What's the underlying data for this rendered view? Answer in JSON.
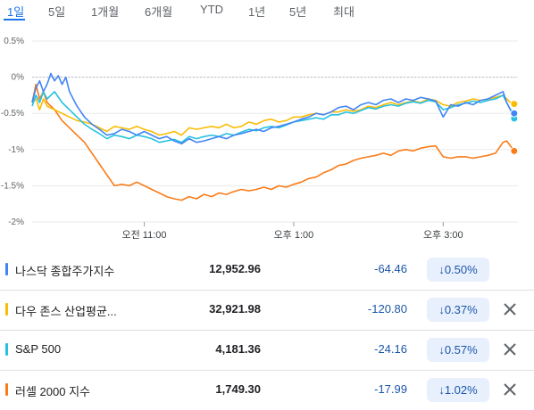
{
  "tabs": [
    {
      "label": "1일",
      "active": true
    },
    {
      "label": "5일"
    },
    {
      "label": "1개월"
    },
    {
      "label": "6개월"
    },
    {
      "label": "YTD"
    },
    {
      "label": "1년"
    },
    {
      "label": "5년"
    },
    {
      "label": "최대"
    }
  ],
  "chart_data": {
    "type": "line",
    "ylim": [
      -2,
      0.5
    ],
    "yticks": [
      "0.5%",
      "0%",
      "-0.5%",
      "-1%",
      "-1.5%",
      "-2%"
    ],
    "yvalues": [
      0.5,
      0,
      -0.5,
      -1,
      -1.5,
      -2
    ],
    "xlim": [
      9.5,
      16.0
    ],
    "xticks": [
      {
        "label": "오전 11:00",
        "t": 11.0
      },
      {
        "label": "오후 1:00",
        "t": 13.0
      },
      {
        "label": "오후 3:00",
        "t": 15.0
      }
    ],
    "grid": true,
    "series": [
      {
        "name": "나스닥 종합주가지수",
        "color": "#4285f4",
        "x": [
          9.5,
          9.55,
          9.6,
          9.65,
          9.7,
          9.75,
          9.8,
          9.85,
          9.9,
          9.95,
          10.0,
          10.1,
          10.2,
          10.3,
          10.4,
          10.5,
          10.6,
          10.7,
          10.8,
          10.9,
          11.0,
          11.1,
          11.2,
          11.3,
          11.4,
          11.5,
          11.6,
          11.7,
          11.8,
          11.9,
          12.0,
          12.1,
          12.2,
          12.3,
          12.4,
          12.5,
          12.6,
          12.7,
          12.8,
          12.9,
          13.0,
          13.1,
          13.2,
          13.3,
          13.4,
          13.5,
          13.6,
          13.7,
          13.8,
          13.9,
          14.0,
          14.1,
          14.2,
          14.3,
          14.4,
          14.5,
          14.6,
          14.7,
          14.8,
          14.9,
          15.0,
          15.1,
          15.2,
          15.3,
          15.4,
          15.5,
          15.6,
          15.7,
          15.8,
          15.85,
          15.9,
          15.95
        ],
        "y": [
          -0.35,
          -0.15,
          -0.05,
          -0.2,
          -0.1,
          0.05,
          -0.05,
          0.02,
          -0.1,
          0.0,
          -0.2,
          -0.4,
          -0.55,
          -0.65,
          -0.72,
          -0.8,
          -0.78,
          -0.72,
          -0.75,
          -0.8,
          -0.75,
          -0.8,
          -0.85,
          -0.82,
          -0.88,
          -0.92,
          -0.85,
          -0.9,
          -0.88,
          -0.85,
          -0.82,
          -0.85,
          -0.8,
          -0.78,
          -0.75,
          -0.72,
          -0.75,
          -0.7,
          -0.68,
          -0.65,
          -0.62,
          -0.58,
          -0.55,
          -0.5,
          -0.52,
          -0.48,
          -0.42,
          -0.4,
          -0.45,
          -0.38,
          -0.35,
          -0.38,
          -0.32,
          -0.3,
          -0.35,
          -0.3,
          -0.32,
          -0.28,
          -0.3,
          -0.33,
          -0.55,
          -0.38,
          -0.4,
          -0.35,
          -0.38,
          -0.32,
          -0.3,
          -0.25,
          -0.2,
          -0.35,
          -0.45,
          -0.5
        ]
      },
      {
        "name": "다우 존스 산업평균지수",
        "color": "#fbbc04",
        "x": [
          9.5,
          9.55,
          9.6,
          9.65,
          9.7,
          9.8,
          9.9,
          10.0,
          10.1,
          10.2,
          10.3,
          10.4,
          10.5,
          10.6,
          10.7,
          10.8,
          10.9,
          11.0,
          11.1,
          11.2,
          11.3,
          11.4,
          11.5,
          11.6,
          11.7,
          11.8,
          11.9,
          12.0,
          12.1,
          12.2,
          12.3,
          12.4,
          12.5,
          12.6,
          12.7,
          12.8,
          12.9,
          13.0,
          13.1,
          13.2,
          13.3,
          13.4,
          13.5,
          13.6,
          13.7,
          13.8,
          13.9,
          14.0,
          14.1,
          14.2,
          14.3,
          14.4,
          14.5,
          14.6,
          14.7,
          14.8,
          14.9,
          15.0,
          15.1,
          15.2,
          15.3,
          15.4,
          15.5,
          15.6,
          15.7,
          15.8,
          15.85,
          15.9,
          15.95
        ],
        "y": [
          -0.35,
          -0.3,
          -0.45,
          -0.3,
          -0.4,
          -0.45,
          -0.5,
          -0.55,
          -0.6,
          -0.62,
          -0.65,
          -0.7,
          -0.75,
          -0.68,
          -0.7,
          -0.72,
          -0.68,
          -0.72,
          -0.75,
          -0.8,
          -0.78,
          -0.75,
          -0.8,
          -0.7,
          -0.72,
          -0.7,
          -0.68,
          -0.7,
          -0.65,
          -0.7,
          -0.68,
          -0.62,
          -0.65,
          -0.6,
          -0.58,
          -0.62,
          -0.6,
          -0.55,
          -0.55,
          -0.52,
          -0.5,
          -0.52,
          -0.48,
          -0.48,
          -0.45,
          -0.47,
          -0.45,
          -0.4,
          -0.42,
          -0.38,
          -0.35,
          -0.38,
          -0.35,
          -0.33,
          -0.35,
          -0.3,
          -0.32,
          -0.38,
          -0.4,
          -0.35,
          -0.33,
          -0.3,
          -0.32,
          -0.3,
          -0.28,
          -0.25,
          -0.3,
          -0.35,
          -0.37
        ]
      },
      {
        "name": "S&P 500",
        "color": "#24c1e0",
        "x": [
          9.5,
          9.55,
          9.6,
          9.65,
          9.7,
          9.8,
          9.9,
          10.0,
          10.1,
          10.2,
          10.3,
          10.4,
          10.5,
          10.6,
          10.7,
          10.8,
          10.9,
          11.0,
          11.1,
          11.2,
          11.3,
          11.4,
          11.5,
          11.6,
          11.7,
          11.8,
          11.9,
          12.0,
          12.1,
          12.2,
          12.3,
          12.4,
          12.5,
          12.6,
          12.7,
          12.8,
          12.9,
          13.0,
          13.1,
          13.2,
          13.3,
          13.4,
          13.5,
          13.6,
          13.7,
          13.8,
          13.9,
          14.0,
          14.1,
          14.2,
          14.3,
          14.4,
          14.5,
          14.6,
          14.7,
          14.8,
          14.9,
          15.0,
          15.1,
          15.2,
          15.3,
          15.4,
          15.5,
          15.6,
          15.7,
          15.8,
          15.85,
          15.9,
          15.95
        ],
        "y": [
          -0.4,
          -0.25,
          -0.35,
          -0.2,
          -0.3,
          -0.2,
          -0.35,
          -0.45,
          -0.55,
          -0.65,
          -0.72,
          -0.78,
          -0.85,
          -0.8,
          -0.82,
          -0.85,
          -0.8,
          -0.82,
          -0.85,
          -0.9,
          -0.88,
          -0.86,
          -0.9,
          -0.82,
          -0.85,
          -0.82,
          -0.8,
          -0.82,
          -0.78,
          -0.8,
          -0.76,
          -0.72,
          -0.74,
          -0.7,
          -0.68,
          -0.7,
          -0.66,
          -0.62,
          -0.6,
          -0.58,
          -0.56,
          -0.58,
          -0.52,
          -0.52,
          -0.48,
          -0.5,
          -0.46,
          -0.42,
          -0.44,
          -0.4,
          -0.38,
          -0.4,
          -0.36,
          -0.34,
          -0.36,
          -0.32,
          -0.34,
          -0.45,
          -0.42,
          -0.38,
          -0.36,
          -0.33,
          -0.35,
          -0.32,
          -0.3,
          -0.25,
          -0.35,
          -0.45,
          -0.57
        ]
      },
      {
        "name": "러셀 2000 지수",
        "color": "#fa7b17",
        "x": [
          9.5,
          9.55,
          9.6,
          9.65,
          9.7,
          9.8,
          9.9,
          10.0,
          10.1,
          10.2,
          10.3,
          10.4,
          10.5,
          10.6,
          10.7,
          10.8,
          10.9,
          11.0,
          11.1,
          11.2,
          11.3,
          11.4,
          11.5,
          11.6,
          11.7,
          11.8,
          11.9,
          12.0,
          12.1,
          12.2,
          12.3,
          12.4,
          12.5,
          12.6,
          12.7,
          12.8,
          12.9,
          13.0,
          13.1,
          13.2,
          13.3,
          13.4,
          13.5,
          13.6,
          13.7,
          13.8,
          13.9,
          14.0,
          14.1,
          14.2,
          14.3,
          14.4,
          14.5,
          14.6,
          14.7,
          14.8,
          14.9,
          15.0,
          15.1,
          15.2,
          15.3,
          15.4,
          15.5,
          15.6,
          15.7,
          15.8,
          15.85,
          15.9,
          15.95
        ],
        "y": [
          -0.35,
          -0.1,
          -0.3,
          -0.2,
          -0.35,
          -0.45,
          -0.6,
          -0.7,
          -0.8,
          -0.9,
          -1.05,
          -1.2,
          -1.35,
          -1.5,
          -1.48,
          -1.5,
          -1.45,
          -1.5,
          -1.55,
          -1.6,
          -1.65,
          -1.68,
          -1.7,
          -1.65,
          -1.68,
          -1.62,
          -1.65,
          -1.6,
          -1.62,
          -1.58,
          -1.55,
          -1.57,
          -1.55,
          -1.52,
          -1.55,
          -1.5,
          -1.52,
          -1.48,
          -1.45,
          -1.4,
          -1.38,
          -1.32,
          -1.28,
          -1.22,
          -1.2,
          -1.15,
          -1.12,
          -1.1,
          -1.08,
          -1.05,
          -1.08,
          -1.02,
          -1.0,
          -1.02,
          -0.98,
          -0.96,
          -0.95,
          -1.1,
          -1.12,
          -1.1,
          -1.1,
          -1.12,
          -1.1,
          -1.08,
          -1.05,
          -0.9,
          -0.88,
          -0.95,
          -1.02
        ]
      }
    ]
  },
  "rows": [
    {
      "name": "나스닥 종합주가지수",
      "price": "12,952.96",
      "change": "-64.46",
      "pct": "↓0.50%",
      "color": "#4285f4",
      "removable": false
    },
    {
      "name": "다우 존스 산업평균...",
      "price": "32,921.98",
      "change": "-120.80",
      "pct": "↓0.37%",
      "color": "#fbbc04",
      "removable": true
    },
    {
      "name": "S&P 500",
      "price": "4,181.36",
      "change": "-24.16",
      "pct": "↓0.57%",
      "color": "#24c1e0",
      "removable": true
    },
    {
      "name": "러셀 2000 지수",
      "price": "1,749.30",
      "change": "-17.99",
      "pct": "↓1.02%",
      "color": "#fa7b17",
      "removable": true
    }
  ]
}
